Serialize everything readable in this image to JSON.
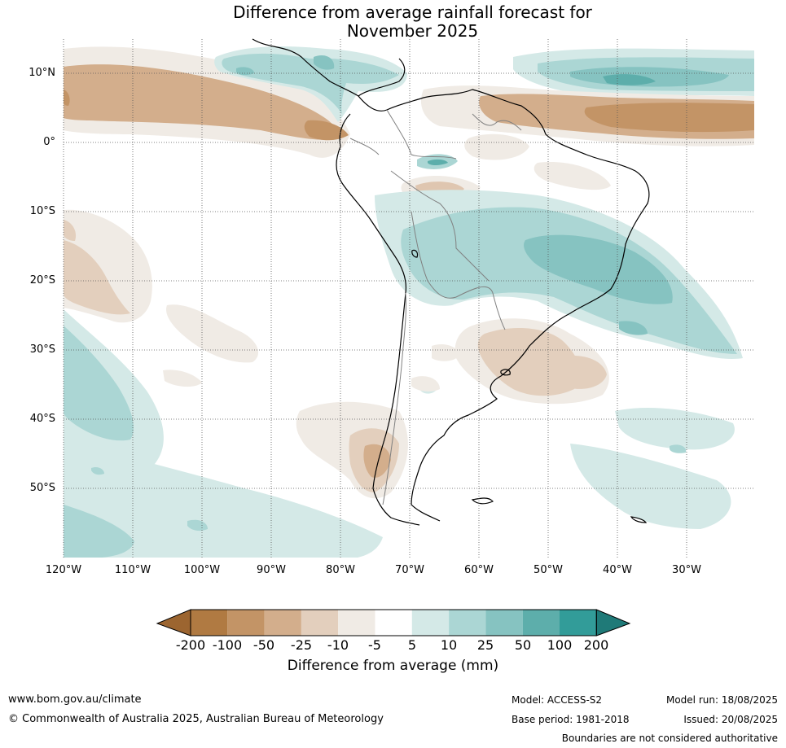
{
  "header": {
    "title_line1": "Difference from average rainfall forecast for",
    "title_line2": "November 2025"
  },
  "axes": {
    "lat_labels": [
      "10°N",
      "0°",
      "10°S",
      "20°S",
      "30°S",
      "40°S",
      "50°S"
    ],
    "lon_labels": [
      "120°W",
      "110°W",
      "100°W",
      "90°W",
      "80°W",
      "70°W",
      "60°W",
      "50°W",
      "40°W",
      "30°W"
    ]
  },
  "colorbar": {
    "title": "Difference from average (mm)",
    "ticks": [
      "-200",
      "-100",
      "-50",
      "-25",
      "-10",
      "-5",
      "5",
      "10",
      "25",
      "50",
      "100",
      "200"
    ],
    "colors": [
      "#9c6530",
      "#b07a42",
      "#c39466",
      "#d3ae8c",
      "#e3cfbd",
      "#f0ebe5",
      "#ffffff",
      "#d4e9e7",
      "#abd6d4",
      "#86c3c1",
      "#5daeab",
      "#329c99",
      "#1f7a78"
    ]
  },
  "footer": {
    "website": "www.bom.gov.au/climate",
    "copyright": "© Commonwealth of Australia 2025, Australian Bureau of Meteorology",
    "model": "Model: ACCESS-S2",
    "base_period": "Base period: 1981-2018",
    "model_run": "Model run: 18/08/2025",
    "issued": "Issued: 20/08/2025",
    "boundaries_note": "Boundaries are not considered authoritative"
  }
}
